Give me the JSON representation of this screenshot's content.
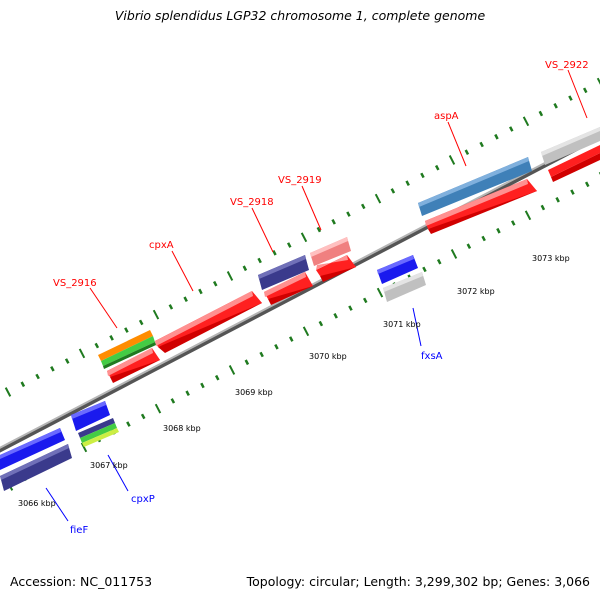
{
  "title": "Vibrio splendidus LGP32 chromosome 1, complete genome",
  "footer": {
    "accession": "Accession: NC_011753",
    "summary": "Topology: circular; Length: 3,299,302 bp; Genes: 3,066"
  },
  "colors": {
    "backbone": "#8c8c8c",
    "tick": "#1f7a1f",
    "red_gene": "#ff0000",
    "blue_gene": "#1a1aee",
    "navy_gene": "#3a3a8c",
    "steel_gene": "#3f80b8",
    "grey_gene": "#c8c8c8",
    "pink_gene": "#f08080",
    "orange_gene": "#ff8c00",
    "green_gene": "#44cc44",
    "label_red": "#ff0000",
    "label_blue": "#0000ff"
  },
  "kbp_labels": [
    {
      "text": "3066 kbp"
    },
    {
      "text": "3067 kbp"
    },
    {
      "text": "3068 kbp"
    },
    {
      "text": "3069 kbp"
    },
    {
      "text": "3070 kbp"
    },
    {
      "text": "3071 kbp"
    },
    {
      "text": "3072 kbp"
    },
    {
      "text": "3073 kbp"
    }
  ],
  "gene_labels": {
    "top": [
      "VS_2916",
      "cpxA",
      "VS_2918",
      "VS_2919",
      "aspA",
      "VS_2922"
    ],
    "bottom": [
      "fieF",
      "cpxP",
      "fxsA"
    ]
  }
}
